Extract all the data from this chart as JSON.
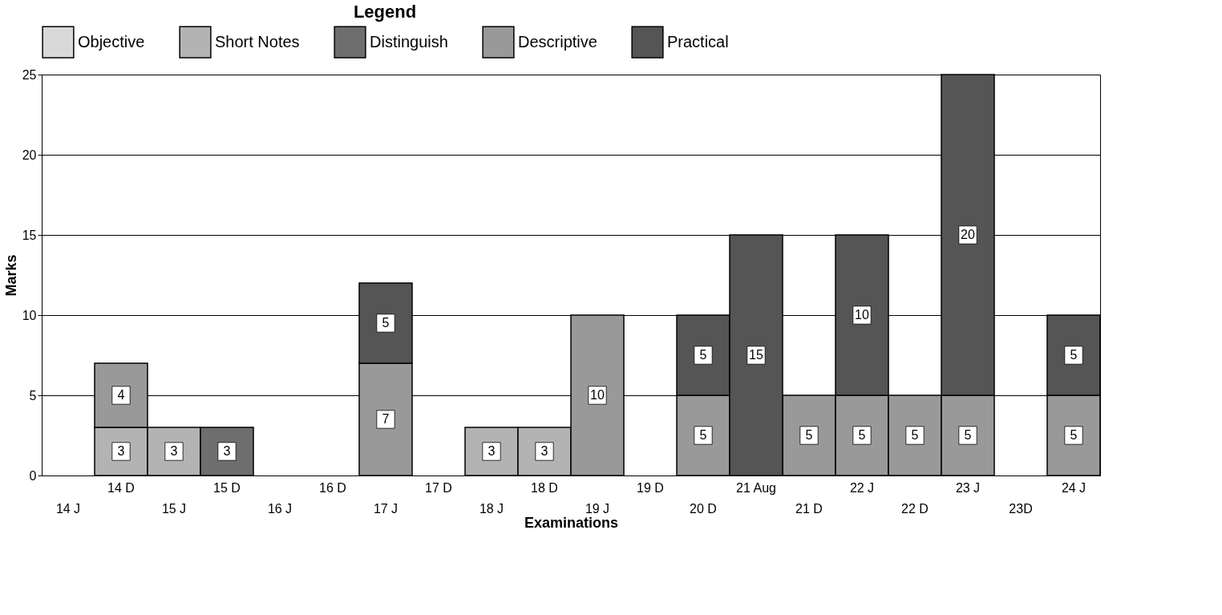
{
  "chart_data": {
    "type": "bar",
    "stacked": true,
    "xlabel": "Examinations",
    "ylabel": "Marks",
    "legend_title": "Legend",
    "legend": "top",
    "categories": [
      "14 J",
      "14 D",
      "15 J",
      "15 D",
      "16 J",
      "16 D",
      "17 J",
      "17 D",
      "18 J",
      "18 D",
      "19 J",
      "19 D",
      "20 D",
      "21 Aug",
      "21 D",
      "22 J",
      "22 D",
      "23 J",
      "23D",
      "24 J"
    ],
    "series": [
      {
        "name": "Objective",
        "color": "#d9d9d9",
        "values": [
          null,
          null,
          null,
          null,
          null,
          null,
          null,
          null,
          null,
          null,
          null,
          null,
          null,
          null,
          null,
          null,
          null,
          null,
          null,
          null
        ]
      },
      {
        "name": "Short Notes",
        "color": "#b3b3b3",
        "values": [
          null,
          3,
          3,
          null,
          null,
          null,
          null,
          null,
          3,
          3,
          null,
          null,
          null,
          null,
          null,
          null,
          null,
          null,
          null,
          null
        ]
      },
      {
        "name": "Distinguish",
        "color": "#6e6e6e",
        "values": [
          null,
          null,
          null,
          3,
          null,
          null,
          null,
          null,
          null,
          null,
          null,
          null,
          null,
          null,
          null,
          null,
          null,
          null,
          null,
          null
        ]
      },
      {
        "name": "Descriptive",
        "color": "#999999",
        "values": [
          null,
          4,
          null,
          null,
          null,
          null,
          7,
          null,
          null,
          null,
          10,
          null,
          5,
          null,
          5,
          5,
          5,
          5,
          null,
          5
        ]
      },
      {
        "name": "Practical",
        "color": "#555555",
        "values": [
          null,
          null,
          null,
          null,
          null,
          null,
          5,
          null,
          null,
          null,
          null,
          null,
          5,
          15,
          null,
          10,
          null,
          20,
          null,
          5
        ]
      }
    ],
    "ylim": [
      0,
      25
    ],
    "yticks": [
      0,
      5,
      10,
      15,
      20,
      25
    ],
    "grid": "y",
    "data_labels": true
  }
}
